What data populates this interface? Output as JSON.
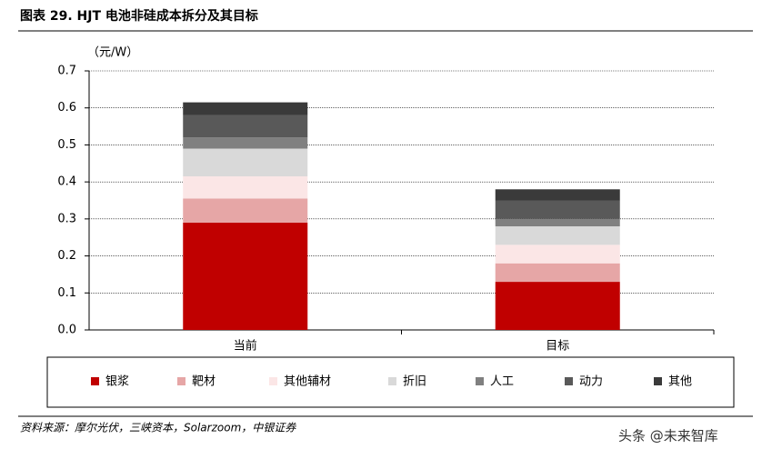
{
  "chart_data": {
    "type": "stacked_bar",
    "title": "图表 29. HJT 电池非硅成本拆分及其目标",
    "y_label": "（元/W）",
    "source": "资料来源：摩尔光伏，三峡资本，Solarzoom，中银证券",
    "watermark": "头条 @未来智库",
    "categories": [
      "当前",
      "目标"
    ],
    "series": [
      {
        "name": "银浆",
        "color": "#c00000",
        "values": [
          0.29,
          0.13
        ]
      },
      {
        "name": "靶材",
        "color": "#e6a6a6",
        "values": [
          0.065,
          0.05
        ]
      },
      {
        "name": "其他辅材",
        "color": "#fbe6e6",
        "values": [
          0.06,
          0.05
        ]
      },
      {
        "name": "折旧",
        "color": "#d9d9d9",
        "values": [
          0.075,
          0.05
        ]
      },
      {
        "name": "人工",
        "color": "#808080",
        "values": [
          0.03,
          0.02
        ]
      },
      {
        "name": "动力",
        "color": "#595959",
        "values": [
          0.06,
          0.05
        ]
      },
      {
        "name": "其他",
        "color": "#3a3a3a",
        "values": [
          0.035,
          0.03
        ]
      }
    ],
    "ylim": [
      0,
      0.7
    ],
    "yticks": [
      {
        "value": 0,
        "label": "0.0"
      },
      0.1,
      0.2,
      0.3,
      0.4,
      0.5,
      0.6,
      0.7
    ],
    "grid": true
  }
}
